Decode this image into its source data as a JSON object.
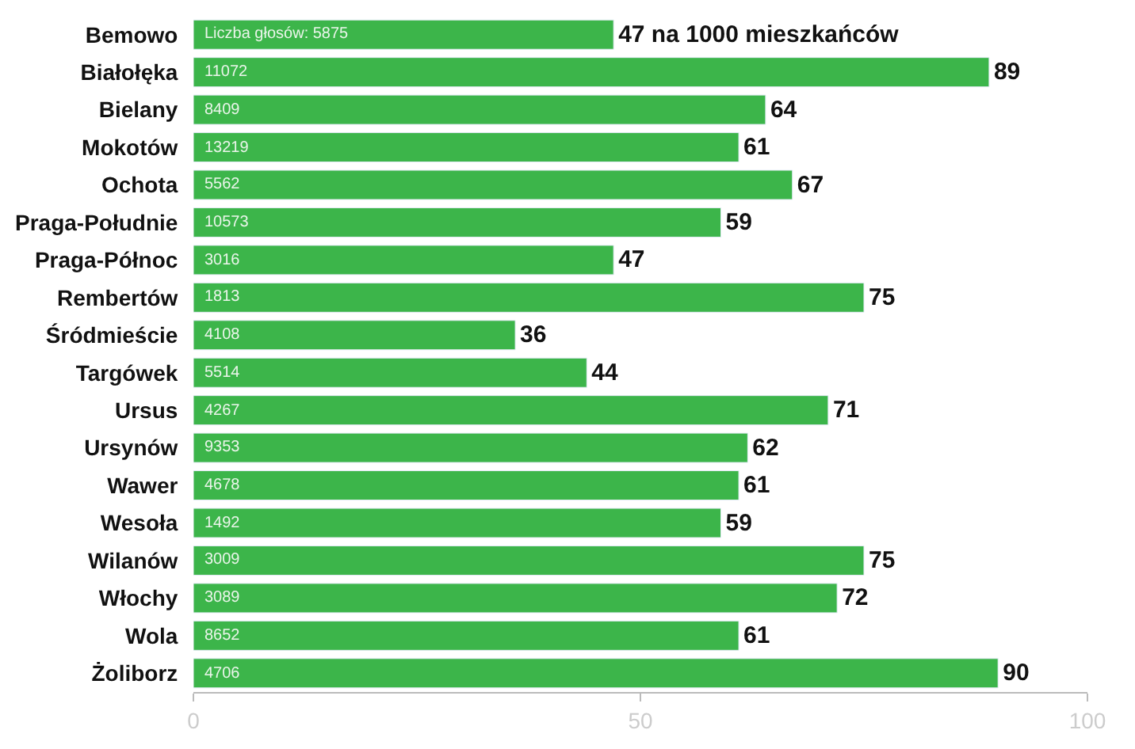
{
  "chart_data": {
    "type": "bar",
    "orientation": "horizontal",
    "categories": [
      "Bemowo",
      "Białołęka",
      "Bielany",
      "Mokotów",
      "Ochota",
      "Praga-Południe",
      "Praga-Północ",
      "Rembertów",
      "Śródmieście",
      "Targówek",
      "Ursus",
      "Ursynów",
      "Wawer",
      "Wesoła",
      "Wilanów",
      "Włochy",
      "Wola",
      "Żoliborz"
    ],
    "values": [
      47,
      89,
      64,
      61,
      67,
      59,
      47,
      75,
      36,
      44,
      71,
      62,
      61,
      59,
      75,
      72,
      61,
      90
    ],
    "value_labels": [
      "47 na 1000 mieszkańców",
      "89",
      "64",
      "61",
      "67",
      "59",
      "47",
      "75",
      "36",
      "44",
      "71",
      "62",
      "61",
      "59",
      "75",
      "72",
      "61",
      "90"
    ],
    "color": "#3cb54a",
    "xlim": [
      0,
      100
    ],
    "xticks": [
      0,
      50,
      100
    ],
    "annotations": [
      "Liczba głosów: 5875",
      "11072",
      "8409",
      "13219",
      "5562",
      "10573",
      "3016",
      "1813",
      "4108",
      "5514",
      "4267",
      "9353",
      "4678",
      "1492",
      "3009",
      "3089",
      "8652",
      "4706"
    ]
  }
}
